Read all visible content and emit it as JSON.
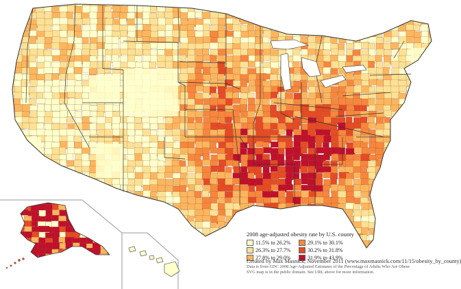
{
  "colors": {
    "bin1": "#ffffcc",
    "bin2": "#ffe194",
    "bin3": "#fdb65e",
    "bin4": "#f7873d",
    "bin5": "#e54b24",
    "bin6": "#c0102c",
    "border": "#333333",
    "inset_line": "#999999",
    "lakes": "#ffffff"
  },
  "legend": {
    "title": "2008 age-adjusted obesity rate by U.S. county",
    "items": [
      {
        "label": "11.5% to 26.2%",
        "color": "#ffffcc"
      },
      {
        "label": "29.1% to 30.1%",
        "color": "#f7873d"
      },
      {
        "label": "26.3% to 27.7%",
        "color": "#ffe194"
      },
      {
        "label": "30.2% to 31.8%",
        "color": "#e54b24"
      },
      {
        "label": "27.8% to 29.0%",
        "color": "#fdb65e"
      },
      {
        "label": "31.9% to 43.9%",
        "color": "#c0102c"
      }
    ]
  },
  "credit": {
    "main": "Created by Max Masnick, November 2011 (www.maxmasnick.com/11/15/obesity_by_county)",
    "line1": "Data is from CDC 2008 Age-Adjusted Estimates of the Percentage of Adults Who Are Obese",
    "line2": "SVG map is in the public domain. See URL above for more information."
  }
}
